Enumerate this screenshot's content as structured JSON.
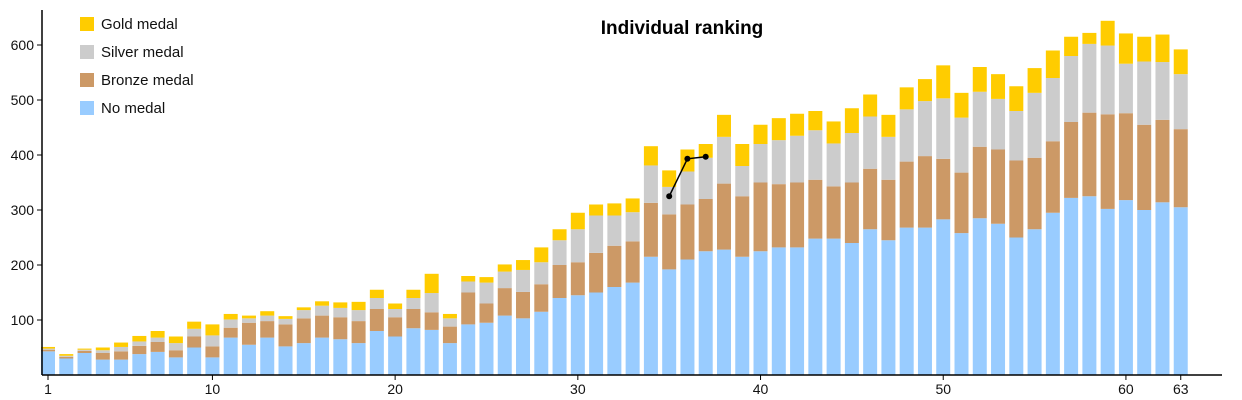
{
  "chart_data": {
    "type": "bar",
    "stacked": true,
    "title": "Individual ranking",
    "xlabel": "",
    "ylabel": "",
    "x": [
      1,
      2,
      3,
      4,
      5,
      6,
      7,
      8,
      9,
      10,
      11,
      12,
      13,
      14,
      15,
      16,
      17,
      18,
      19,
      20,
      21,
      22,
      23,
      24,
      25,
      26,
      27,
      28,
      29,
      30,
      31,
      32,
      33,
      34,
      35,
      36,
      37,
      38,
      39,
      40,
      41,
      42,
      43,
      44,
      45,
      46,
      47,
      48,
      49,
      50,
      51,
      52,
      53,
      54,
      55,
      56,
      57,
      58,
      59,
      60,
      61,
      62,
      63
    ],
    "xticks": [
      1,
      10,
      20,
      30,
      40,
      50,
      60,
      63
    ],
    "yticks": [
      100,
      200,
      300,
      400,
      500,
      600
    ],
    "ylim": [
      0,
      660
    ],
    "xlim": [
      0.5,
      63.5
    ],
    "legend_position": "top-left",
    "grid": false,
    "series": [
      {
        "name": "No medal",
        "color": "#99ccff",
        "values": [
          43,
          30,
          40,
          28,
          28,
          38,
          42,
          32,
          50,
          32,
          68,
          55,
          68,
          52,
          58,
          68,
          65,
          58,
          80,
          70,
          85,
          82,
          58,
          92,
          95,
          108,
          103,
          115,
          140,
          145,
          150,
          160,
          168,
          215,
          192,
          210,
          225,
          228,
          215,
          225,
          232,
          232,
          248,
          248,
          240,
          265,
          245,
          268,
          268,
          283,
          258,
          285,
          275,
          250,
          265,
          295,
          322,
          325,
          302,
          318,
          300,
          314,
          305
        ]
      },
      {
        "name": "Bronze medal",
        "color": "#cc9966",
        "values": [
          3,
          3,
          4,
          12,
          15,
          15,
          18,
          13,
          20,
          20,
          18,
          40,
          30,
          40,
          45,
          40,
          40,
          40,
          40,
          35,
          35,
          32,
          30,
          58,
          35,
          50,
          48,
          50,
          60,
          60,
          72,
          75,
          75,
          98,
          100,
          100,
          95,
          120,
          110,
          125,
          115,
          118,
          107,
          95,
          110,
          110,
          110,
          120,
          130,
          110,
          110,
          130,
          135,
          140,
          130,
          130,
          138,
          152,
          172,
          158,
          155,
          150,
          142
        ]
      },
      {
        "name": "Silver medal",
        "color": "#cccccc",
        "values": [
          2,
          2,
          2,
          5,
          8,
          8,
          8,
          13,
          14,
          20,
          15,
          8,
          10,
          10,
          15,
          18,
          17,
          20,
          20,
          15,
          20,
          35,
          15,
          20,
          38,
          30,
          40,
          40,
          45,
          60,
          68,
          55,
          53,
          68,
          50,
          60,
          75,
          85,
          55,
          70,
          80,
          85,
          90,
          78,
          90,
          95,
          78,
          95,
          100,
          110,
          100,
          100,
          92,
          90,
          118,
          115,
          120,
          125,
          125,
          90,
          115,
          105,
          100
        ]
      },
      {
        "name": "Gold medal",
        "color": "#ffcc00",
        "values": [
          3,
          3,
          2,
          5,
          8,
          10,
          12,
          12,
          13,
          20,
          10,
          5,
          8,
          5,
          5,
          8,
          10,
          15,
          15,
          10,
          15,
          35,
          8,
          10,
          10,
          13,
          18,
          27,
          20,
          30,
          20,
          22,
          25,
          35,
          30,
          40,
          25,
          40,
          40,
          35,
          40,
          40,
          35,
          40,
          45,
          40,
          40,
          40,
          40,
          60,
          45,
          45,
          45,
          45,
          45,
          50,
          35,
          20,
          45,
          55,
          45,
          50,
          45
        ]
      }
    ],
    "annotation_line": {
      "points": [
        [
          35,
          325
        ],
        [
          36,
          393
        ],
        [
          37,
          397
        ]
      ]
    }
  }
}
